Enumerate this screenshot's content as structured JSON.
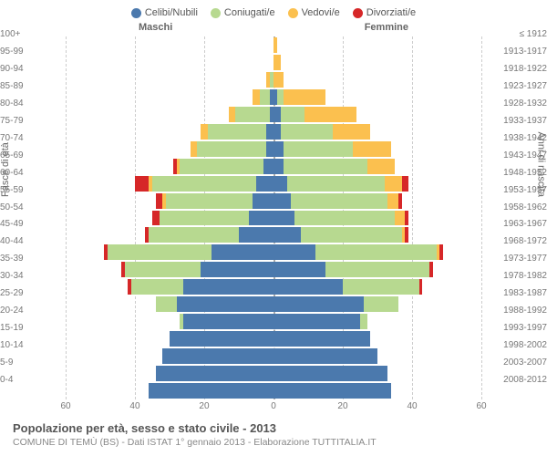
{
  "legend": [
    {
      "label": "Celibi/Nubili",
      "color": "#4b79ad"
    },
    {
      "label": "Coniugati/e",
      "color": "#b7d990"
    },
    {
      "label": "Vedovi/e",
      "color": "#fbc04f"
    },
    {
      "label": "Divorziati/e",
      "color": "#d62728"
    }
  ],
  "header": {
    "male": "Maschi",
    "female": "Femmine"
  },
  "axis": {
    "left_label": "Fasce di età",
    "right_label": "Anni di nascita"
  },
  "x": {
    "max": 60,
    "ticks": [
      60,
      40,
      20,
      0,
      20,
      40,
      60
    ]
  },
  "colors": {
    "celibi": "#4b79ad",
    "coniugati": "#b7d990",
    "vedovi": "#fbc04f",
    "divorziati": "#d62728",
    "grid": "#cccccc",
    "center": "#aaaaaa",
    "bg": "#ffffff"
  },
  "rows": [
    {
      "age": "100+",
      "birth": "≤ 1912",
      "m": {
        "c": 0,
        "k": 0,
        "v": 0,
        "d": 0
      },
      "f": {
        "c": 0,
        "k": 0,
        "v": 1,
        "d": 0
      }
    },
    {
      "age": "95-99",
      "birth": "1913-1917",
      "m": {
        "c": 0,
        "k": 0,
        "v": 0,
        "d": 0
      },
      "f": {
        "c": 0,
        "k": 0,
        "v": 2,
        "d": 0
      }
    },
    {
      "age": "90-94",
      "birth": "1918-1922",
      "m": {
        "c": 0,
        "k": 1,
        "v": 1,
        "d": 0
      },
      "f": {
        "c": 0,
        "k": 0,
        "v": 3,
        "d": 0
      }
    },
    {
      "age": "85-89",
      "birth": "1923-1927",
      "m": {
        "c": 1,
        "k": 3,
        "v": 2,
        "d": 0
      },
      "f": {
        "c": 1,
        "k": 2,
        "v": 12,
        "d": 0
      }
    },
    {
      "age": "80-84",
      "birth": "1928-1932",
      "m": {
        "c": 1,
        "k": 10,
        "v": 2,
        "d": 0
      },
      "f": {
        "c": 2,
        "k": 7,
        "v": 15,
        "d": 0
      }
    },
    {
      "age": "75-79",
      "birth": "1933-1937",
      "m": {
        "c": 2,
        "k": 17,
        "v": 2,
        "d": 0
      },
      "f": {
        "c": 2,
        "k": 15,
        "v": 11,
        "d": 0
      }
    },
    {
      "age": "70-74",
      "birth": "1938-1942",
      "m": {
        "c": 2,
        "k": 20,
        "v": 2,
        "d": 0
      },
      "f": {
        "c": 3,
        "k": 20,
        "v": 11,
        "d": 0
      }
    },
    {
      "age": "65-69",
      "birth": "1943-1947",
      "m": {
        "c": 3,
        "k": 24,
        "v": 1,
        "d": 1
      },
      "f": {
        "c": 3,
        "k": 24,
        "v": 8,
        "d": 0
      }
    },
    {
      "age": "60-64",
      "birth": "1948-1952",
      "m": {
        "c": 5,
        "k": 30,
        "v": 1,
        "d": 4
      },
      "f": {
        "c": 4,
        "k": 28,
        "v": 5,
        "d": 2
      }
    },
    {
      "age": "55-59",
      "birth": "1953-1957",
      "m": {
        "c": 6,
        "k": 25,
        "v": 1,
        "d": 2
      },
      "f": {
        "c": 5,
        "k": 28,
        "v": 3,
        "d": 1
      }
    },
    {
      "age": "50-54",
      "birth": "1958-1962",
      "m": {
        "c": 7,
        "k": 26,
        "v": 0,
        "d": 2
      },
      "f": {
        "c": 6,
        "k": 29,
        "v": 3,
        "d": 1
      }
    },
    {
      "age": "45-49",
      "birth": "1963-1967",
      "m": {
        "c": 10,
        "k": 26,
        "v": 0,
        "d": 1
      },
      "f": {
        "c": 8,
        "k": 29,
        "v": 1,
        "d": 1
      }
    },
    {
      "age": "40-44",
      "birth": "1968-1972",
      "m": {
        "c": 18,
        "k": 30,
        "v": 0,
        "d": 1
      },
      "f": {
        "c": 12,
        "k": 35,
        "v": 1,
        "d": 1
      }
    },
    {
      "age": "35-39",
      "birth": "1973-1977",
      "m": {
        "c": 21,
        "k": 22,
        "v": 0,
        "d": 1
      },
      "f": {
        "c": 15,
        "k": 30,
        "v": 0,
        "d": 1
      }
    },
    {
      "age": "30-34",
      "birth": "1978-1982",
      "m": {
        "c": 26,
        "k": 15,
        "v": 0,
        "d": 1
      },
      "f": {
        "c": 20,
        "k": 22,
        "v": 0,
        "d": 1
      }
    },
    {
      "age": "25-29",
      "birth": "1983-1987",
      "m": {
        "c": 28,
        "k": 6,
        "v": 0,
        "d": 0
      },
      "f": {
        "c": 26,
        "k": 10,
        "v": 0,
        "d": 0
      }
    },
    {
      "age": "20-24",
      "birth": "1988-1992",
      "m": {
        "c": 26,
        "k": 1,
        "v": 0,
        "d": 0
      },
      "f": {
        "c": 25,
        "k": 2,
        "v": 0,
        "d": 0
      }
    },
    {
      "age": "15-19",
      "birth": "1993-1997",
      "m": {
        "c": 30,
        "k": 0,
        "v": 0,
        "d": 0
      },
      "f": {
        "c": 28,
        "k": 0,
        "v": 0,
        "d": 0
      }
    },
    {
      "age": "10-14",
      "birth": "1998-2002",
      "m": {
        "c": 32,
        "k": 0,
        "v": 0,
        "d": 0
      },
      "f": {
        "c": 30,
        "k": 0,
        "v": 0,
        "d": 0
      }
    },
    {
      "age": "5-9",
      "birth": "2003-2007",
      "m": {
        "c": 34,
        "k": 0,
        "v": 0,
        "d": 0
      },
      "f": {
        "c": 33,
        "k": 0,
        "v": 0,
        "d": 0
      }
    },
    {
      "age": "0-4",
      "birth": "2008-2012",
      "m": {
        "c": 36,
        "k": 0,
        "v": 0,
        "d": 0
      },
      "f": {
        "c": 34,
        "k": 0,
        "v": 0,
        "d": 0
      }
    }
  ],
  "footer": {
    "title": "Popolazione per età, sesso e stato civile - 2013",
    "subtitle": "COMUNE DI TEMÙ (BS) - Dati ISTAT 1° gennaio 2013 - Elaborazione TUTTITALIA.IT"
  }
}
